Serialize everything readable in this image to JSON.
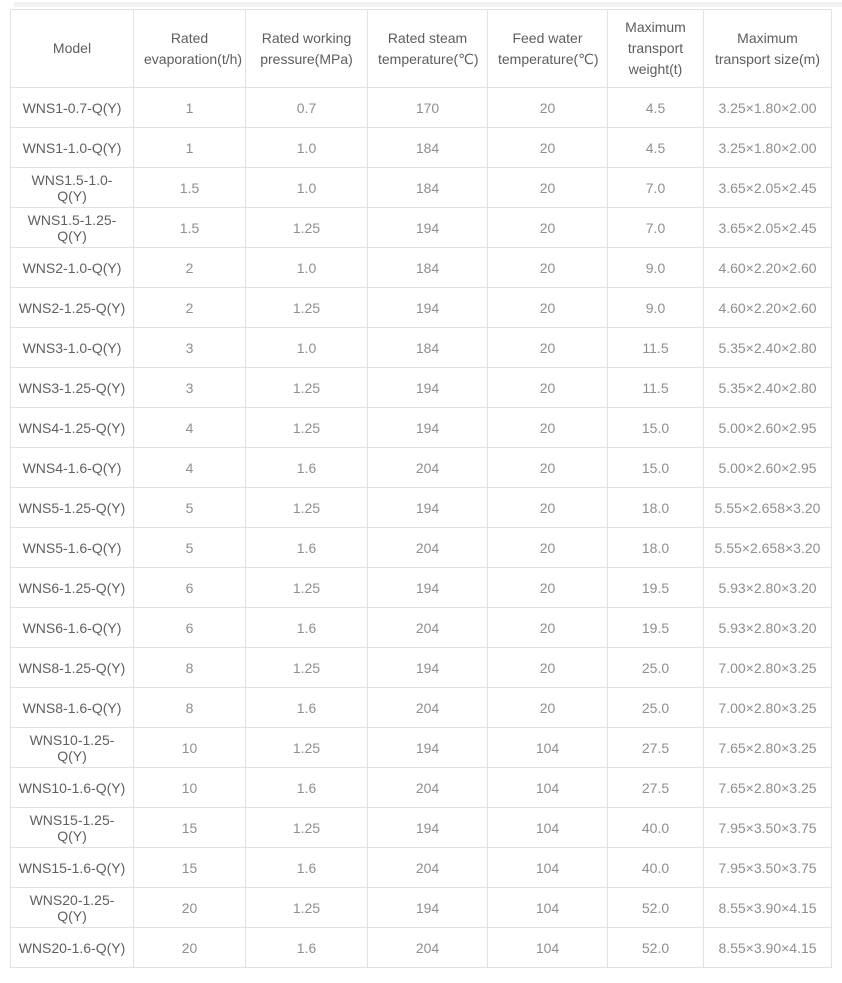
{
  "colors": {
    "border": "#e2e2e2",
    "header_text": "#5d5d5d",
    "model_text": "#606060",
    "value_text": "#8f8f8f",
    "top_strip": "#f1f1f1"
  },
  "table": {
    "columns": [
      "Model",
      "Rated evaporation(t/h)",
      "Rated working pressure(MPa)",
      "Rated steam temperature(℃)",
      "Feed water temperature(℃)",
      "Maximum transport weight(t)",
      "Maximum transport size(m)"
    ],
    "rows": [
      [
        "WNS1-0.7-Q(Y)",
        "1",
        "0.7",
        "170",
        "20",
        "4.5",
        "3.25×1.80×2.00"
      ],
      [
        "WNS1-1.0-Q(Y)",
        "1",
        "1.0",
        "184",
        "20",
        "4.5",
        "3.25×1.80×2.00"
      ],
      [
        "WNS1.5-1.0-Q(Y)",
        "1.5",
        "1.0",
        "184",
        "20",
        "7.0",
        "3.65×2.05×2.45"
      ],
      [
        "WNS1.5-1.25-Q(Y)",
        "1.5",
        "1.25",
        "194",
        "20",
        "7.0",
        "3.65×2.05×2.45"
      ],
      [
        "WNS2-1.0-Q(Y)",
        "2",
        "1.0",
        "184",
        "20",
        "9.0",
        "4.60×2.20×2.60"
      ],
      [
        "WNS2-1.25-Q(Y)",
        "2",
        "1.25",
        "194",
        "20",
        "9.0",
        "4.60×2.20×2.60"
      ],
      [
        "WNS3-1.0-Q(Y)",
        "3",
        "1.0",
        "184",
        "20",
        "11.5",
        "5.35×2.40×2.80"
      ],
      [
        "WNS3-1.25-Q(Y)",
        "3",
        "1.25",
        "194",
        "20",
        "11.5",
        "5.35×2.40×2.80"
      ],
      [
        "WNS4-1.25-Q(Y)",
        "4",
        "1.25",
        "194",
        "20",
        "15.0",
        "5.00×2.60×2.95"
      ],
      [
        "WNS4-1.6-Q(Y)",
        "4",
        "1.6",
        "204",
        "20",
        "15.0",
        "5.00×2.60×2.95"
      ],
      [
        "WNS5-1.25-Q(Y)",
        "5",
        "1.25",
        "194",
        "20",
        "18.0",
        "5.55×2.658×3.20"
      ],
      [
        "WNS5-1.6-Q(Y)",
        "5",
        "1.6",
        "204",
        "20",
        "18.0",
        "5.55×2.658×3.20"
      ],
      [
        "WNS6-1.25-Q(Y)",
        "6",
        "1.25",
        "194",
        "20",
        "19.5",
        "5.93×2.80×3.20"
      ],
      [
        "WNS6-1.6-Q(Y)",
        "6",
        "1.6",
        "204",
        "20",
        "19.5",
        "5.93×2.80×3.20"
      ],
      [
        "WNS8-1.25-Q(Y)",
        "8",
        "1.25",
        "194",
        "20",
        "25.0",
        "7.00×2.80×3.25"
      ],
      [
        "WNS8-1.6-Q(Y)",
        "8",
        "1.6",
        "204",
        "20",
        "25.0",
        "7.00×2.80×3.25"
      ],
      [
        "WNS10-1.25-Q(Y)",
        "10",
        "1.25",
        "194",
        "104",
        "27.5",
        "7.65×2.80×3.25"
      ],
      [
        "WNS10-1.6-Q(Y)",
        "10",
        "1.6",
        "204",
        "104",
        "27.5",
        "7.65×2.80×3.25"
      ],
      [
        "WNS15-1.25-Q(Y)",
        "15",
        "1.25",
        "194",
        "104",
        "40.0",
        "7.95×3.50×3.75"
      ],
      [
        "WNS15-1.6-Q(Y)",
        "15",
        "1.6",
        "204",
        "104",
        "40.0",
        "7.95×3.50×3.75"
      ],
      [
        "WNS20-1.25-Q(Y)",
        "20",
        "1.25",
        "194",
        "104",
        "52.0",
        "8.55×3.90×4.15"
      ],
      [
        "WNS20-1.6-Q(Y)",
        "20",
        "1.6",
        "204",
        "104",
        "52.0",
        "8.55×3.90×4.15"
      ]
    ]
  }
}
